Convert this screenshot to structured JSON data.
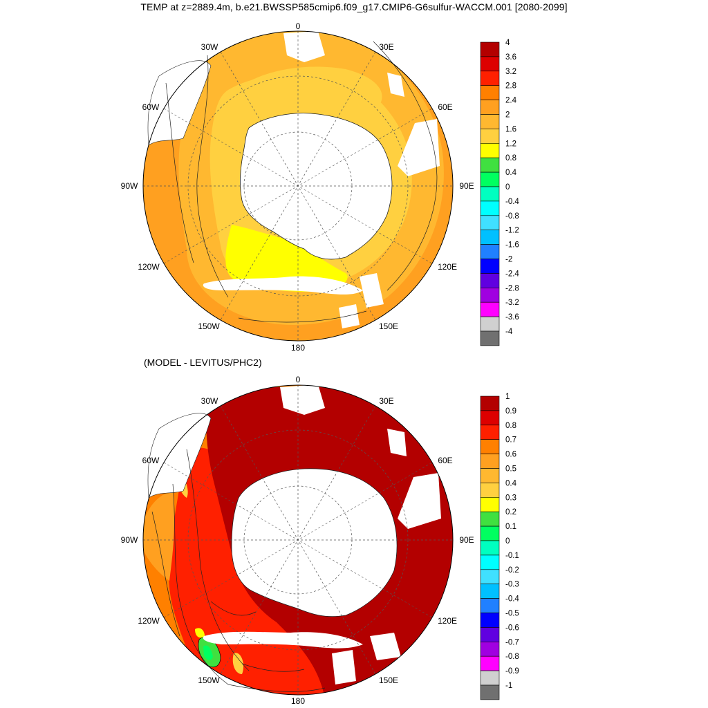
{
  "title": "TEMP at z=2889.4m, b.e21.BWSSP585cmip6.f09_g17.CMIP6-G6sulfur-WACCM.001 [2080-2099]",
  "subtitle": "(MODEL - LEVITUS/PHC2)",
  "longitude_labels": {
    "lon_0": "0",
    "lon_30e": "30E",
    "lon_60e": "60E",
    "lon_90e": "90E",
    "lon_120e": "120E",
    "lon_150e": "150E",
    "lon_180": "180",
    "lon_150w": "150W",
    "lon_120w": "120W",
    "lon_90w": "90W",
    "lon_60w": "60W",
    "lon_30w": "30W"
  },
  "colorbar_top": {
    "labels": [
      "4",
      "3.6",
      "3.2",
      "2.8",
      "2.4",
      "2",
      "1.6",
      "1.2",
      "0.8",
      "0.4",
      "0",
      "-0.4",
      "-0.8",
      "-1.2",
      "-1.6",
      "-2",
      "-2.4",
      "-2.8",
      "-3.2",
      "-3.6",
      "-4"
    ],
    "colors": [
      "#b30000",
      "#dd0000",
      "#ff2000",
      "#ff8000",
      "#ffa020",
      "#ffb830",
      "#ffd040",
      "#ffff00",
      "#40e040",
      "#00ff60",
      "#00ffc0",
      "#00ffff",
      "#40e0ff",
      "#00c0ff",
      "#2080ff",
      "#0000ff",
      "#6000e0",
      "#a000e0",
      "#ff00ff",
      "#d0d0d0",
      "#707070"
    ]
  },
  "colorbar_bottom": {
    "labels": [
      "1",
      "0.9",
      "0.8",
      "0.7",
      "0.6",
      "0.5",
      "0.4",
      "0.3",
      "0.2",
      "0.1",
      "0",
      "-0.1",
      "-0.2",
      "-0.3",
      "-0.4",
      "-0.5",
      "-0.6",
      "-0.7",
      "-0.8",
      "-0.9",
      "-1"
    ],
    "colors": [
      "#b30000",
      "#dd0000",
      "#ff2000",
      "#ff8000",
      "#ffa020",
      "#ffb830",
      "#ffd040",
      "#ffff00",
      "#40e040",
      "#00ff60",
      "#00ffc0",
      "#00ffff",
      "#40e0ff",
      "#00c0ff",
      "#2080ff",
      "#0000ff",
      "#6000e0",
      "#a000e0",
      "#ff00ff",
      "#d0d0d0",
      "#707070"
    ]
  },
  "colors": {
    "top_open_ocean": "#ffb830",
    "top_outer_ring": "#ffa020",
    "top_near_antarctica": "#ffd040",
    "top_ross_weddell_patch": "#ffff00",
    "bottom_main": "#b30000",
    "bottom_west": "#ff2000",
    "bottom_far_west": "#ff8000",
    "bottom_anomaly_low": "#40e040",
    "land": "#ffffff"
  }
}
